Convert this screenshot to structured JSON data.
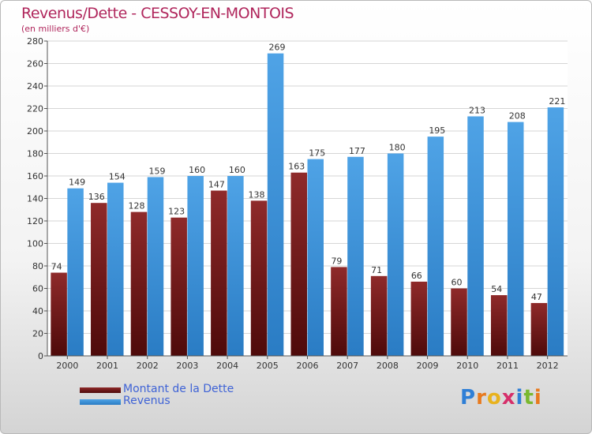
{
  "chart_data": {
    "type": "bar",
    "title": "Revenus/Dette - CESSOY-EN-MONTOIS",
    "subtitle": "(en milliers d'€)",
    "categories": [
      "2000",
      "2001",
      "2002",
      "2003",
      "2004",
      "2005",
      "2006",
      "2007",
      "2008",
      "2009",
      "2010",
      "2011",
      "2012"
    ],
    "series": [
      {
        "name": "Montant de la Dette",
        "color": "#7a1a1a",
        "values": [
          74,
          136,
          128,
          123,
          147,
          138,
          163,
          79,
          71,
          66,
          60,
          54,
          47
        ]
      },
      {
        "name": "Revenus",
        "color": "#3d93d9",
        "values": [
          149,
          154,
          159,
          160,
          160,
          269,
          175,
          177,
          180,
          195,
          213,
          208,
          221
        ]
      }
    ],
    "ylim": [
      0,
      280
    ],
    "yticks": [
      0,
      20,
      40,
      60,
      80,
      100,
      120,
      140,
      160,
      180,
      200,
      220,
      240,
      260,
      280
    ],
    "grid": true,
    "legend": "bottom-left"
  },
  "logo": {
    "text": "Proxiti",
    "letters": [
      "P",
      "r",
      "o",
      "x",
      "i",
      "t",
      "i"
    ],
    "colors": [
      "#2f7fd6",
      "#e87a1e",
      "#e8b21e",
      "#d62f6a",
      "#2f7fd6",
      "#7ab82f",
      "#e87a1e"
    ]
  }
}
